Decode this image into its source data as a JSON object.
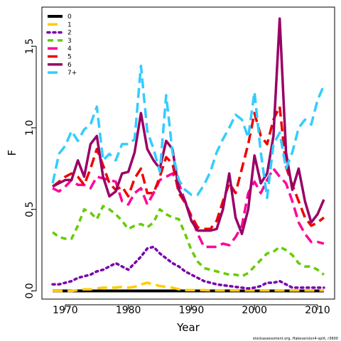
{
  "chart_data": {
    "type": "line",
    "xlabel": "Year",
    "ylabel": "F",
    "xlim": [
      1966.3,
      2012.7
    ],
    "ylim": [
      -0.05,
      1.74
    ],
    "x_ticks": [
      1970,
      1980,
      1990,
      2000,
      2010
    ],
    "x_tick_labels": [
      "1970",
      "1980",
      "1990",
      "2000",
      "2010"
    ],
    "y_ticks": [
      0.0,
      0.5,
      1.0,
      1.5
    ],
    "y_tick_labels": [
      "0.0",
      "0.5",
      "1.0",
      "1.5"
    ],
    "legend_position": "top-left",
    "credit": "stockassessment.org, Hakeversion4-split, r3600",
    "x": [
      1968,
      1969,
      1970,
      1971,
      1972,
      1973,
      1974,
      1975,
      1976,
      1977,
      1978,
      1979,
      1980,
      1981,
      1982,
      1983,
      1984,
      1985,
      1986,
      1987,
      1988,
      1989,
      1990,
      1991,
      1992,
      1993,
      1994,
      1995,
      1996,
      1997,
      1998,
      1999,
      2000,
      2001,
      2002,
      2003,
      2004,
      2005,
      2006,
      2007,
      2008,
      2009,
      2010,
      2011
    ],
    "series": [
      {
        "name": "0",
        "color": "#000000",
        "dash": "solid",
        "width": 4,
        "values": [
          0.0,
          0.0,
          0.0,
          0.0,
          0.0,
          0.0,
          0.0,
          0.0,
          0.0,
          0.0,
          0.0,
          0.0,
          0.0,
          0.0,
          0.0,
          0.0,
          0.0,
          0.0,
          0.0,
          0.0,
          0.0,
          0.0,
          0.0,
          0.0,
          0.0,
          0.0,
          0.0,
          0.0,
          0.0,
          0.0,
          0.0,
          0.0,
          0.0,
          0.0,
          0.0,
          0.0,
          0.0,
          0.0,
          0.0,
          0.0,
          0.0,
          0.0,
          0.0,
          0.0
        ]
      },
      {
        "name": "1",
        "color": "#ffcc00",
        "dash": "longdash",
        "width": 3.5,
        "values": [
          0.0,
          0.0,
          0.0,
          0.0,
          0.005,
          0.01,
          0.01,
          0.015,
          0.02,
          0.02,
          0.02,
          0.025,
          0.02,
          0.025,
          0.04,
          0.05,
          0.04,
          0.03,
          0.025,
          0.02,
          0.01,
          0.005,
          0.005,
          0.005,
          0.005,
          0.003,
          0.003,
          0.003,
          0.003,
          0.003,
          0.003,
          0.003,
          0.003,
          0.003,
          0.003,
          0.003,
          0.003,
          0.003,
          0.003,
          0.003,
          0.003,
          0.003,
          0.003,
          0.003
        ]
      },
      {
        "name": "2",
        "color": "#7700aa",
        "dash": "dotted",
        "width": 3.5,
        "values": [
          0.04,
          0.04,
          0.05,
          0.06,
          0.08,
          0.09,
          0.1,
          0.12,
          0.13,
          0.15,
          0.17,
          0.15,
          0.13,
          0.17,
          0.21,
          0.26,
          0.27,
          0.23,
          0.2,
          0.17,
          0.15,
          0.12,
          0.1,
          0.08,
          0.06,
          0.05,
          0.04,
          0.035,
          0.03,
          0.025,
          0.02,
          0.015,
          0.02,
          0.03,
          0.05,
          0.05,
          0.06,
          0.04,
          0.02,
          0.02,
          0.02,
          0.02,
          0.02,
          0.02
        ]
      },
      {
        "name": "3",
        "color": "#66cc00",
        "dash": "shortdash",
        "width": 3.5,
        "values": [
          0.36,
          0.33,
          0.32,
          0.32,
          0.4,
          0.5,
          0.48,
          0.44,
          0.52,
          0.5,
          0.47,
          0.43,
          0.38,
          0.4,
          0.41,
          0.39,
          0.42,
          0.5,
          0.47,
          0.45,
          0.44,
          0.35,
          0.25,
          0.18,
          0.14,
          0.13,
          0.12,
          0.11,
          0.1,
          0.1,
          0.09,
          0.11,
          0.15,
          0.19,
          0.23,
          0.24,
          0.27,
          0.25,
          0.22,
          0.17,
          0.15,
          0.15,
          0.13,
          0.1
        ]
      },
      {
        "name": "4",
        "color": "#ff0099",
        "dash": "longdash",
        "width": 3.5,
        "values": [
          0.63,
          0.61,
          0.64,
          0.68,
          0.65,
          0.65,
          0.63,
          0.7,
          0.69,
          0.68,
          0.67,
          0.55,
          0.53,
          0.6,
          0.63,
          0.53,
          0.6,
          0.68,
          0.7,
          0.72,
          0.66,
          0.55,
          0.45,
          0.35,
          0.27,
          0.27,
          0.27,
          0.29,
          0.28,
          0.33,
          0.4,
          0.6,
          0.67,
          0.6,
          0.68,
          0.75,
          0.7,
          0.66,
          0.55,
          0.42,
          0.35,
          0.3,
          0.3,
          0.29
        ]
      },
      {
        "name": "5",
        "color": "#ee0000",
        "dash": "longdash",
        "width": 3.5,
        "values": [
          0.64,
          0.67,
          0.7,
          0.72,
          0.7,
          0.65,
          0.75,
          0.87,
          0.77,
          0.66,
          0.62,
          0.64,
          0.58,
          0.69,
          0.75,
          0.6,
          0.6,
          0.7,
          0.82,
          0.78,
          0.6,
          0.54,
          0.46,
          0.39,
          0.38,
          0.38,
          0.43,
          0.55,
          0.66,
          0.6,
          0.75,
          0.9,
          1.09,
          0.95,
          0.9,
          1.05,
          1.13,
          0.76,
          0.65,
          0.55,
          0.45,
          0.4,
          0.42,
          0.45
        ]
      },
      {
        "name": "6",
        "color": "#990066",
        "dash": "solid",
        "width": 3.5,
        "values": [
          0.64,
          0.66,
          0.68,
          0.68,
          0.8,
          0.7,
          0.9,
          0.95,
          0.7,
          0.58,
          0.61,
          0.72,
          0.73,
          0.85,
          1.09,
          0.87,
          0.8,
          0.75,
          0.92,
          0.87,
          0.62,
          0.55,
          0.43,
          0.37,
          0.37,
          0.37,
          0.38,
          0.5,
          0.72,
          0.45,
          0.35,
          0.5,
          0.83,
          0.66,
          0.72,
          0.95,
          1.67,
          0.85,
          0.62,
          0.75,
          0.55,
          0.42,
          0.47,
          0.56
        ]
      },
      {
        "name": "7+",
        "color": "#33ccff",
        "dash": "longdash",
        "width": 3.5,
        "values": [
          0.66,
          0.84,
          0.89,
          0.98,
          0.92,
          0.99,
          1.02,
          1.13,
          0.8,
          0.84,
          0.8,
          0.9,
          0.9,
          0.93,
          1.38,
          0.98,
          0.87,
          0.73,
          1.2,
          0.85,
          0.68,
          0.62,
          0.59,
          0.59,
          0.65,
          0.73,
          0.85,
          0.93,
          1.0,
          1.08,
          1.05,
          0.94,
          1.22,
          0.85,
          0.57,
          0.9,
          0.97,
          0.75,
          0.85,
          1.0,
          1.05,
          1.02,
          1.17,
          1.26
        ]
      }
    ]
  }
}
